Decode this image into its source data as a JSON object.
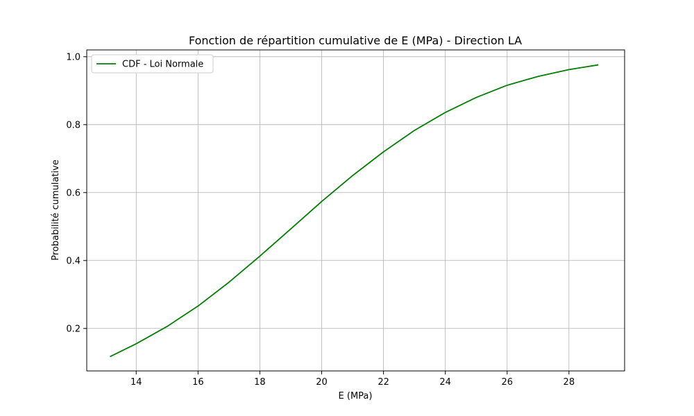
{
  "chart_data": {
    "type": "line",
    "title": "Fonction de répartition cumulative de E (MPa) - Direction LA",
    "xlabel": "E (MPa)",
    "ylabel": "Probabilité cumulative",
    "xlim": [
      12.4,
      29.8
    ],
    "ylim": [
      0.075,
      1.02
    ],
    "xticks": [
      14,
      16,
      18,
      20,
      22,
      24,
      26,
      28
    ],
    "yticks": [
      0.2,
      0.4,
      0.6,
      0.8,
      1.0
    ],
    "xtick_labels": [
      "14",
      "16",
      "18",
      "20",
      "22",
      "24",
      "26",
      "28"
    ],
    "ytick_labels": [
      "0.2",
      "0.4",
      "0.6",
      "0.8",
      "1.0"
    ],
    "grid": true,
    "legend_position": "upper-left",
    "colors": {
      "line": "#008000",
      "grid": "#b0b0b0",
      "axes": "#000000"
    },
    "series": [
      {
        "name": "CDF - Loi Normale",
        "x": [
          13.15,
          14.0,
          15.0,
          16.0,
          17.0,
          18.0,
          19.0,
          20.0,
          21.0,
          22.0,
          23.0,
          24.0,
          25.0,
          26.0,
          27.0,
          28.0,
          28.95
        ],
        "y": [
          0.117,
          0.155,
          0.206,
          0.266,
          0.336,
          0.413,
          0.493,
          0.574,
          0.65,
          0.72,
          0.783,
          0.836,
          0.88,
          0.916,
          0.942,
          0.962,
          0.976
        ]
      }
    ]
  }
}
